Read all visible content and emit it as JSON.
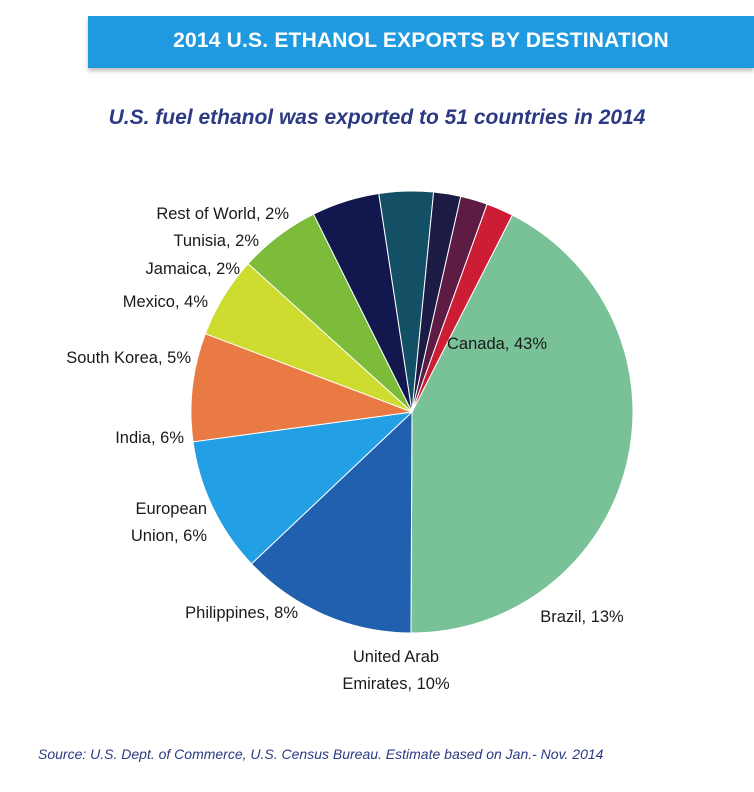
{
  "header": {
    "title": "2014 U.S. ETHANOL EXPORTS BY DESTINATION"
  },
  "subtitle": "U.S. fuel ethanol was exported to 51 countries in 2014",
  "source": "Source: U.S. Dept. of Commerce, U.S. Census Bureau. Estimate based on Jan.- Nov. 2014",
  "chart_data": {
    "type": "pie",
    "title": "2014 U.S. ETHANOL EXPORTS BY DESTINATION",
    "subtitle": "U.S. fuel ethanol was exported to 51 countries in 2014",
    "unit": "%",
    "slices": [
      {
        "name": "Canada",
        "label": "Canada, 43%",
        "value": 43,
        "color": "#79c298"
      },
      {
        "name": "Brazil",
        "label": "Brazil, 13%",
        "value": 13,
        "color": "#2160ae"
      },
      {
        "name": "United Arab Emirates",
        "label": "United Arab Emirates, 10%",
        "value": 10,
        "color": "#239fe6"
      },
      {
        "name": "Philippines",
        "label": "Philippines, 8%",
        "value": 8,
        "color": "#ea7a43"
      },
      {
        "name": "European Union",
        "label": "European Union, 6%",
        "value": 6,
        "color": "#cedc2f"
      },
      {
        "name": "India",
        "label": "India, 6%",
        "value": 6,
        "color": "#7cbc3a"
      },
      {
        "name": "South Korea",
        "label": "South Korea, 5%",
        "value": 5,
        "color": "#12184d"
      },
      {
        "name": "Mexico",
        "label": "Mexico, 4%",
        "value": 4,
        "color": "#134f65"
      },
      {
        "name": "Jamaica",
        "label": "Jamaica, 2%",
        "value": 2,
        "color": "#1c1b45"
      },
      {
        "name": "Tunisia",
        "label": "Tunisia, 2%",
        "value": 2,
        "color": "#5e1c45"
      },
      {
        "name": "Rest of World",
        "label": "Rest of World, 2%",
        "value": 2,
        "color": "#cc1d35"
      }
    ]
  }
}
